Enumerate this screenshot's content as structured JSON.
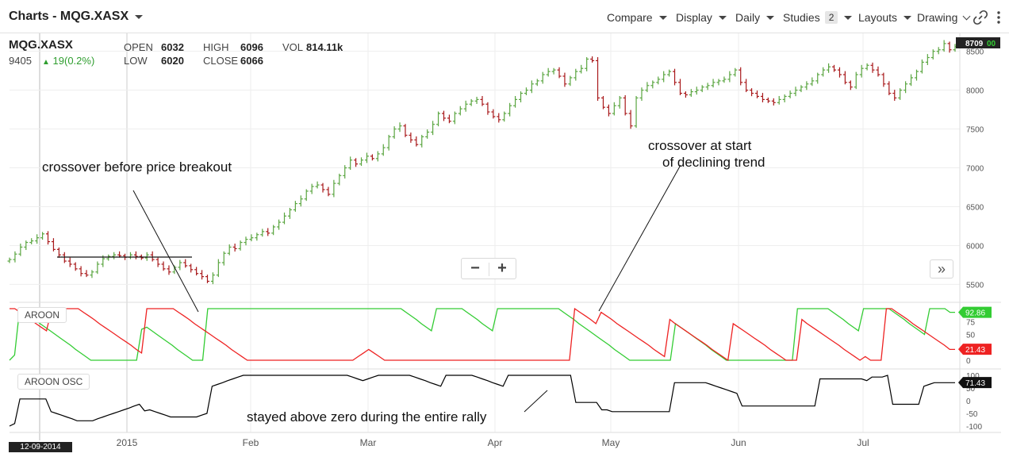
{
  "header": {
    "title": "Charts - MQG.XASX",
    "menus": [
      {
        "label": "Compare"
      },
      {
        "label": "Display"
      },
      {
        "label": "Daily"
      },
      {
        "label": "Studies",
        "badge": "2"
      },
      {
        "label": "Layouts"
      },
      {
        "label": "Drawing"
      }
    ]
  },
  "legend": {
    "symbol": "MQG.XASX",
    "secondary_value": "9405",
    "change": "19(0.2%)",
    "open_label": "OPEN",
    "open": "6032",
    "high_label": "HIGH",
    "high": "6096",
    "vol_label": "VOL",
    "vol": "814.11k",
    "low_label": "LOW",
    "low": "6020",
    "close_label": "CLOSE",
    "close": "6066"
  },
  "zoom": {
    "minus": "−",
    "plus": "+"
  },
  "expand_label": "»",
  "colors": {
    "up": "#5aa540",
    "down": "#a8181a",
    "aroon_up": "#33cc33",
    "aroon_down": "#ee2222",
    "osc": "#000000"
  },
  "annotations": {
    "a1": "crossover before price breakout",
    "a2_line1": "crossover at start",
    "a2_line2": "of declining trend",
    "a3": "stayed above zero during the entire rally"
  },
  "date_tag": "12-09-2014",
  "chart_data": [
    {
      "type": "ohlc",
      "title": "MQG.XASX",
      "x_ticks": [
        "2015",
        "Feb",
        "Mar",
        "Apr",
        "May",
        "Jun",
        "Jul"
      ],
      "y_ticks": [
        5500,
        6000,
        6500,
        7000,
        7500,
        8000,
        8500
      ],
      "ylim": [
        5300,
        8650
      ],
      "last_price_label": "8709",
      "last_price_suffix": "00",
      "closes": [
        5820,
        5890,
        5980,
        6040,
        6060,
        6100,
        6150,
        6050,
        5950,
        5880,
        5800,
        5760,
        5700,
        5640,
        5620,
        5660,
        5760,
        5830,
        5860,
        5880,
        5870,
        5850,
        5880,
        5860,
        5840,
        5880,
        5820,
        5760,
        5700,
        5660,
        5720,
        5780,
        5740,
        5690,
        5640,
        5600,
        5540,
        5620,
        5780,
        5900,
        5980,
        5960,
        6040,
        6080,
        6100,
        6140,
        6180,
        6160,
        6240,
        6300,
        6380,
        6460,
        6540,
        6600,
        6700,
        6760,
        6780,
        6720,
        6660,
        6800,
        6900,
        7000,
        7100,
        7050,
        7100,
        7150,
        7120,
        7180,
        7260,
        7400,
        7500,
        7540,
        7420,
        7360,
        7300,
        7400,
        7460,
        7560,
        7700,
        7640,
        7600,
        7700,
        7760,
        7820,
        7860,
        7880,
        7820,
        7720,
        7660,
        7620,
        7700,
        7800,
        7880,
        7960,
        8000,
        8080,
        8120,
        8200,
        8240,
        8260,
        8180,
        8080,
        8160,
        8240,
        8280,
        8400,
        8380,
        7900,
        7780,
        7700,
        7800,
        7900,
        7700,
        7540,
        7900,
        8000,
        8060,
        8100,
        8140,
        8200,
        8240,
        8100,
        7960,
        7940,
        7980,
        8000,
        8040,
        8060,
        8100,
        8120,
        8140,
        8200,
        8260,
        8100,
        8000,
        7960,
        7920,
        7880,
        7860,
        7840,
        7880,
        7920,
        7960,
        8000,
        8040,
        8080,
        8120,
        8200,
        8260,
        8300,
        8260,
        8200,
        8100,
        8040,
        8200,
        8280,
        8320,
        8260,
        8200,
        8080,
        7960,
        7900,
        8000,
        8080,
        8160,
        8240,
        8360,
        8420,
        8500,
        8520,
        8600,
        8520,
        8560
      ]
    },
    {
      "type": "line",
      "title": "AROON",
      "y_ticks": [
        0,
        25,
        50,
        75
      ],
      "ylim": [
        0,
        100
      ],
      "up_value_label": "92.86",
      "down_value_label": "21.43",
      "series": [
        {
          "name": "Aroon Up",
          "values": [
            0,
            10,
            100,
            93,
            86,
            79,
            71,
            64,
            57,
            50,
            43,
            36,
            29,
            21,
            14,
            7,
            0,
            0,
            0,
            0,
            0,
            0,
            0,
            0,
            0,
            0,
            60,
            64,
            57,
            50,
            43,
            36,
            29,
            21,
            14,
            7,
            0,
            0,
            0,
            100,
            100,
            100,
            100,
            100,
            100,
            100,
            100,
            100,
            100,
            100,
            100,
            100,
            100,
            100,
            100,
            100,
            100,
            100,
            100,
            100,
            100,
            100,
            100,
            100,
            100,
            100,
            100,
            100,
            100,
            100,
            100,
            100,
            100,
            100,
            100,
            100,
            100,
            100,
            93,
            86,
            79,
            71,
            64,
            57,
            100,
            100,
            100,
            100,
            100,
            100,
            93,
            86,
            79,
            71,
            64,
            57,
            100,
            100,
            100,
            100,
            100,
            100,
            100,
            100,
            100,
            100,
            100,
            100,
            100,
            93,
            86,
            79,
            71,
            64,
            57,
            50,
            43,
            36,
            29,
            21,
            14,
            7,
            0,
            0,
            0,
            0,
            0,
            0,
            0,
            0,
            0,
            71,
            64,
            57,
            50,
            43,
            36,
            29,
            21,
            14,
            7,
            0,
            0,
            0,
            0,
            0,
            0,
            0,
            0,
            0,
            0,
            0,
            0,
            0,
            0,
            100,
            100,
            100,
            100,
            100,
            100,
            100,
            93,
            86,
            79,
            71,
            64,
            57,
            100,
            100,
            100,
            100,
            100,
            100,
            93,
            86,
            79,
            71,
            64,
            57,
            50,
            100,
            100,
            100,
            100,
            93,
            93
          ]
        },
        {
          "name": "Aroon Down",
          "values": [
            100,
            100,
            93,
            86,
            79,
            71,
            64,
            57,
            100,
            100,
            100,
            100,
            100,
            100,
            93,
            86,
            79,
            71,
            64,
            57,
            50,
            43,
            36,
            29,
            21,
            14,
            100,
            100,
            100,
            100,
            100,
            100,
            93,
            86,
            79,
            71,
            64,
            57,
            50,
            43,
            36,
            29,
            21,
            14,
            7,
            0,
            0,
            0,
            0,
            0,
            0,
            0,
            0,
            0,
            0,
            0,
            0,
            0,
            0,
            0,
            0,
            0,
            0,
            0,
            0,
            0,
            7,
            14,
            21,
            14,
            7,
            0,
            0,
            0,
            0,
            0,
            0,
            0,
            0,
            0,
            0,
            0,
            0,
            0,
            0,
            0,
            0,
            0,
            0,
            0,
            0,
            0,
            0,
            0,
            0,
            0,
            0,
            0,
            0,
            0,
            0,
            0,
            0,
            0,
            0,
            0,
            0,
            100,
            93,
            86,
            79,
            71,
            93,
            86,
            79,
            71,
            64,
            57,
            50,
            43,
            36,
            29,
            21,
            14,
            7,
            79,
            71,
            64,
            57,
            50,
            43,
            36,
            29,
            21,
            14,
            7,
            0,
            71,
            64,
            57,
            50,
            43,
            36,
            29,
            21,
            14,
            7,
            0,
            0,
            0,
            79,
            71,
            64,
            57,
            50,
            43,
            36,
            29,
            21,
            14,
            7,
            0,
            7,
            0,
            0,
            0,
            100,
            100,
            93,
            86,
            79,
            71,
            64,
            57,
            50,
            43,
            36,
            29,
            21,
            21
          ]
        }
      ]
    },
    {
      "type": "line",
      "title": "AROON OSC",
      "y_ticks": [
        -100,
        -50,
        0,
        50,
        100
      ],
      "ylim": [
        -100,
        100
      ],
      "last_value_label": "71.43",
      "series": [
        {
          "name": "Oscillator",
          "values": [
            -100,
            -90,
            7,
            7,
            7,
            7,
            7,
            7,
            -43,
            -50,
            -57,
            -64,
            -71,
            -79,
            -79,
            -79,
            -79,
            -71,
            -64,
            -57,
            -50,
            -43,
            -36,
            -29,
            -21,
            -14,
            -40,
            -36,
            -43,
            -50,
            -57,
            -64,
            -64,
            -64,
            -64,
            -64,
            -64,
            -57,
            -50,
            57,
            64,
            71,
            79,
            86,
            93,
            100,
            100,
            100,
            100,
            100,
            100,
            100,
            100,
            100,
            100,
            100,
            100,
            100,
            100,
            100,
            100,
            100,
            100,
            100,
            100,
            100,
            93,
            86,
            79,
            86,
            93,
            100,
            100,
            100,
            100,
            100,
            100,
            100,
            93,
            86,
            79,
            71,
            64,
            57,
            100,
            100,
            100,
            100,
            100,
            100,
            93,
            86,
            79,
            71,
            64,
            57,
            100,
            100,
            100,
            100,
            100,
            100,
            100,
            100,
            100,
            100,
            100,
            100,
            100,
            -7,
            -7,
            -7,
            -7,
            -7,
            -36,
            -36,
            -43,
            -43,
            -43,
            -43,
            -43,
            -43,
            -43,
            -43,
            -43,
            -43,
            -43,
            -43,
            71,
            71,
            71,
            71,
            71,
            71,
            71,
            64,
            57,
            50,
            43,
            36,
            29,
            -21,
            -21,
            -21,
            -21,
            -21,
            -21,
            -21,
            -21,
            -21,
            -21,
            -21,
            -21,
            -21,
            -21,
            -21,
            86,
            86,
            86,
            86,
            86,
            86,
            86,
            86,
            86,
            79,
            93,
            93,
            93,
            100,
            -14,
            -14,
            -14,
            -14,
            -14,
            -14,
            57,
            64,
            71,
            71,
            71,
            71,
            71
          ]
        }
      ]
    }
  ]
}
